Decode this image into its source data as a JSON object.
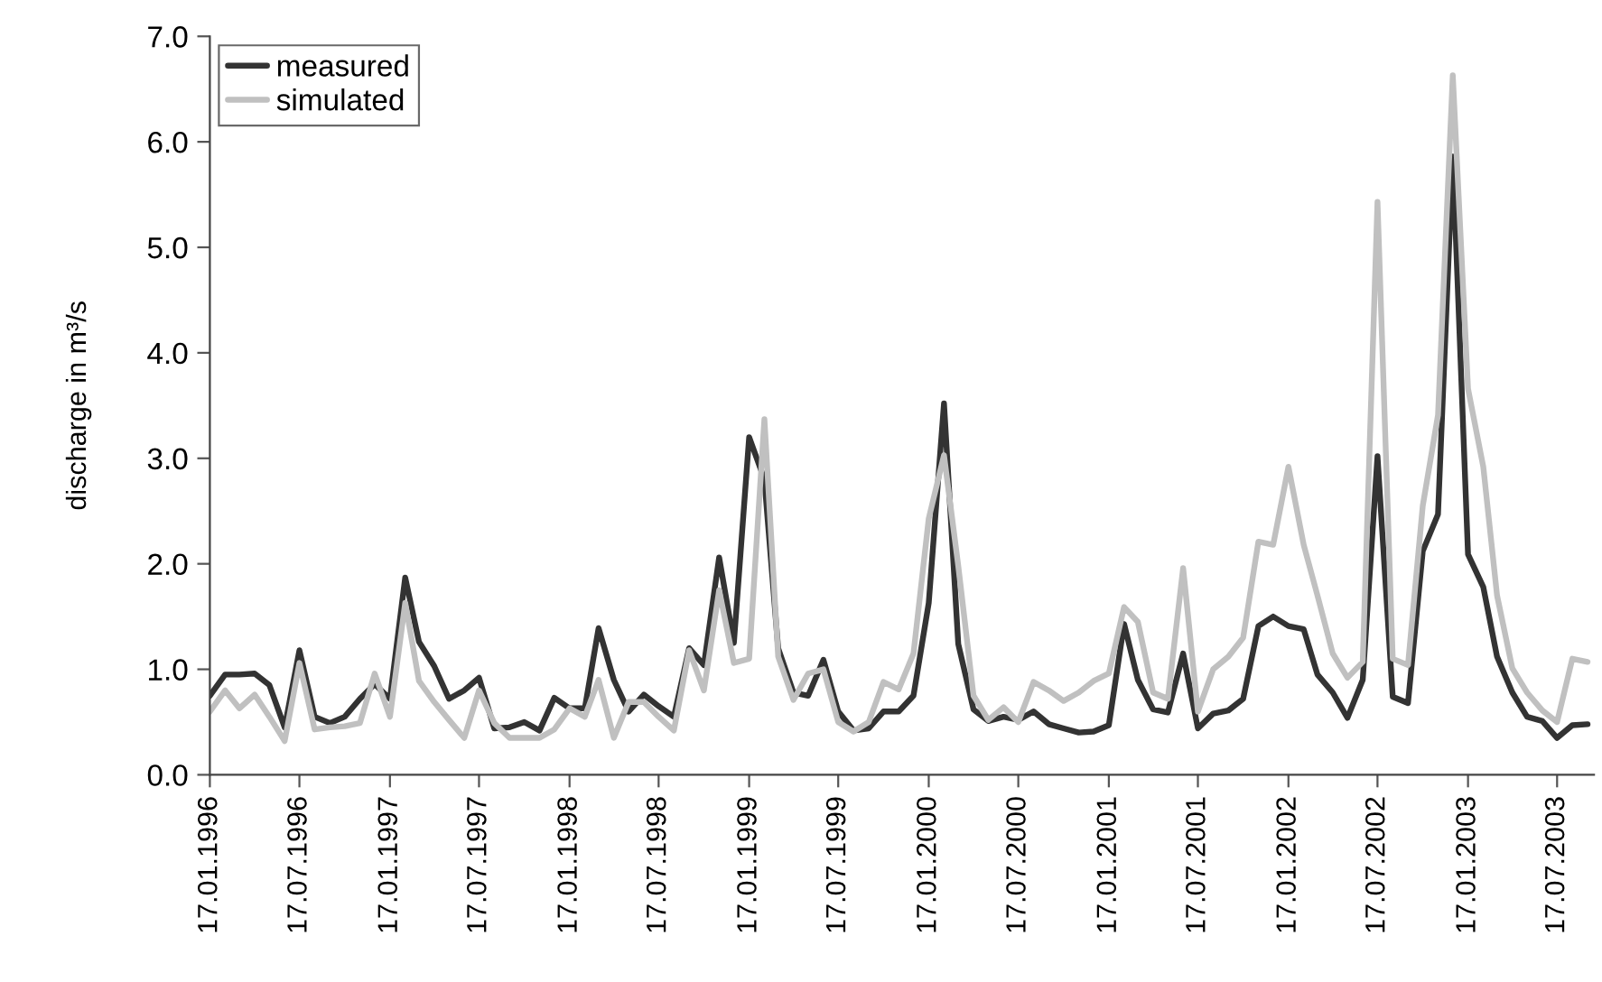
{
  "chart_data": {
    "type": "line",
    "ylabel": "discharge in m³/s",
    "x": [
      "1996-01-17",
      "1996-02-17",
      "1996-03-17",
      "1996-04-17",
      "1996-05-17",
      "1996-06-17",
      "1996-07-17",
      "1996-08-17",
      "1996-09-17",
      "1996-10-17",
      "1996-11-17",
      "1996-12-17",
      "1997-01-17",
      "1997-02-17",
      "1997-03-17",
      "1997-04-17",
      "1997-05-17",
      "1997-06-17",
      "1997-07-17",
      "1997-08-17",
      "1997-09-17",
      "1997-10-17",
      "1997-11-17",
      "1997-12-17",
      "1998-01-17",
      "1998-02-17",
      "1998-03-17",
      "1998-04-17",
      "1998-05-17",
      "1998-06-17",
      "1998-07-17",
      "1998-08-17",
      "1998-09-17",
      "1998-10-17",
      "1998-11-17",
      "1998-12-17",
      "1999-01-17",
      "1999-02-17",
      "1999-03-17",
      "1999-04-17",
      "1999-05-17",
      "1999-06-17",
      "1999-07-17",
      "1999-08-17",
      "1999-09-17",
      "1999-10-17",
      "1999-11-17",
      "1999-12-17",
      "2000-01-17",
      "2000-02-17",
      "2000-03-17",
      "2000-04-17",
      "2000-05-17",
      "2000-06-17",
      "2000-07-17",
      "2000-08-17",
      "2000-09-17",
      "2000-10-17",
      "2000-11-17",
      "2000-12-17",
      "2001-01-17",
      "2001-02-17",
      "2001-03-17",
      "2001-04-17",
      "2001-05-17",
      "2001-06-17",
      "2001-07-17",
      "2001-08-17",
      "2001-09-17",
      "2001-10-17",
      "2001-11-17",
      "2001-12-17",
      "2002-01-17",
      "2002-02-17",
      "2002-03-17",
      "2002-04-17",
      "2002-05-17",
      "2002-06-17",
      "2002-07-17",
      "2002-08-17",
      "2002-09-17",
      "2002-10-17",
      "2002-11-17",
      "2002-12-17",
      "2003-01-17",
      "2003-02-17",
      "2003-03-17",
      "2003-04-17",
      "2003-05-17",
      "2003-06-17",
      "2003-07-17",
      "2003-08-17",
      "2003-09-17"
    ],
    "series": [
      {
        "name": "measured",
        "color": "#333333",
        "values": [
          0.75,
          0.95,
          0.95,
          0.96,
          0.85,
          0.45,
          1.18,
          0.55,
          0.49,
          0.55,
          0.72,
          0.86,
          0.72,
          1.87,
          1.26,
          1.03,
          0.72,
          0.8,
          0.92,
          0.44,
          0.45,
          0.5,
          0.42,
          0.73,
          0.63,
          0.63,
          1.39,
          0.9,
          0.6,
          0.76,
          0.65,
          0.55,
          1.2,
          1.04,
          2.06,
          1.25,
          3.2,
          2.8,
          1.2,
          0.78,
          0.75,
          1.09,
          0.6,
          0.42,
          0.44,
          0.6,
          0.6,
          0.75,
          1.63,
          3.52,
          1.24,
          0.62,
          0.51,
          0.55,
          0.52,
          0.6,
          0.48,
          0.44,
          0.4,
          0.41,
          0.47,
          1.43,
          0.9,
          0.62,
          0.59,
          1.15,
          0.44,
          0.58,
          0.61,
          0.72,
          1.41,
          1.5,
          1.41,
          1.38,
          0.95,
          0.78,
          0.54,
          0.9,
          3.02,
          0.74,
          0.68,
          2.12,
          2.47,
          5.86,
          2.09,
          1.78,
          1.12,
          0.78,
          0.55,
          0.51,
          0.35,
          0.47,
          0.48
        ]
      },
      {
        "name": "simulated",
        "color": "#c0c0c0",
        "values": [
          0.6,
          0.8,
          0.63,
          0.76,
          0.55,
          0.32,
          1.06,
          0.43,
          0.45,
          0.46,
          0.49,
          0.96,
          0.55,
          1.63,
          0.89,
          0.69,
          0.52,
          0.35,
          0.8,
          0.49,
          0.35,
          0.35,
          0.35,
          0.43,
          0.63,
          0.55,
          0.9,
          0.35,
          0.69,
          0.69,
          0.55,
          0.42,
          1.18,
          0.8,
          1.75,
          1.06,
          1.1,
          3.37,
          1.12,
          0.71,
          0.96,
          1.0,
          0.5,
          0.41,
          0.5,
          0.88,
          0.81,
          1.15,
          2.43,
          3.03,
          1.98,
          0.75,
          0.52,
          0.64,
          0.5,
          0.88,
          0.8,
          0.7,
          0.78,
          0.89,
          0.96,
          1.59,
          1.45,
          0.78,
          0.72,
          1.96,
          0.6,
          1.0,
          1.12,
          1.3,
          2.21,
          2.18,
          2.92,
          2.18,
          1.7,
          1.15,
          0.92,
          1.07,
          5.43,
          1.1,
          1.04,
          2.55,
          3.41,
          6.63,
          3.66,
          2.92,
          1.7,
          1.01,
          0.78,
          0.61,
          0.5,
          1.1,
          1.07
        ]
      }
    ],
    "xlim": [
      "1996-01-17",
      "2003-09-30"
    ],
    "xticks": [
      {
        "value": "1996-01-17",
        "label": "17.01.1996"
      },
      {
        "value": "1996-07-17",
        "label": "17.07.1996"
      },
      {
        "value": "1997-01-17",
        "label": "17.01.1997"
      },
      {
        "value": "1997-07-17",
        "label": "17.07.1997"
      },
      {
        "value": "1998-01-17",
        "label": "17.01.1998"
      },
      {
        "value": "1998-07-17",
        "label": "17.07.1998"
      },
      {
        "value": "1999-01-17",
        "label": "17.01.1999"
      },
      {
        "value": "1999-07-17",
        "label": "17.07.1999"
      },
      {
        "value": "2000-01-17",
        "label": "17.01.2000"
      },
      {
        "value": "2000-07-17",
        "label": "17.07.2000"
      },
      {
        "value": "2001-01-17",
        "label": "17.01.2001"
      },
      {
        "value": "2001-07-17",
        "label": "17.07.2001"
      },
      {
        "value": "2002-01-17",
        "label": "17.01.2002"
      },
      {
        "value": "2002-07-17",
        "label": "17.07.2002"
      },
      {
        "value": "2003-01-17",
        "label": "17.01.2003"
      },
      {
        "value": "2003-07-17",
        "label": "17.07.2003"
      }
    ],
    "ylim": [
      0,
      7
    ],
    "yticks": [
      {
        "value": 0,
        "label": "0.0"
      },
      {
        "value": 1,
        "label": "1.0"
      },
      {
        "value": 2,
        "label": "2.0"
      },
      {
        "value": 3,
        "label": "3.0"
      },
      {
        "value": 4,
        "label": "4.0"
      },
      {
        "value": 5,
        "label": "5.0"
      },
      {
        "value": 6,
        "label": "6.0"
      },
      {
        "value": 7,
        "label": "7.0"
      }
    ],
    "grid": false,
    "legend": "top left",
    "marker": "none",
    "line_style": "solid"
  }
}
